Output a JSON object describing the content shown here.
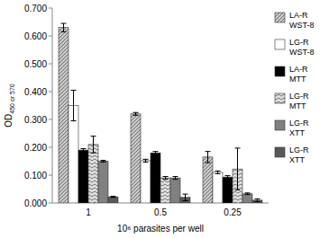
{
  "chart_data": {
    "type": "bar",
    "x_label": "10⁶ parasites per well",
    "y_label": "OD450 or 570",
    "categories": [
      "1",
      "0.5",
      "0.25"
    ],
    "series": [
      {
        "name": "LA-R WST-8",
        "color": "#c8c8c8",
        "values": [
          0.63,
          0.32,
          0.165
        ],
        "errors": [
          0.015,
          0.005,
          0.02
        ]
      },
      {
        "name": "LG-R WST-8",
        "color": "#ffffff",
        "values": [
          0.35,
          0.152,
          0.11
        ],
        "errors": [
          0.055,
          0.005,
          0.005
        ]
      },
      {
        "name": "LA-R MTT",
        "color": "#000000",
        "values": [
          0.19,
          0.18,
          0.093
        ],
        "errors": [
          0.005,
          0.005,
          0.005
        ]
      },
      {
        "name": "LG-R MTT",
        "color": "#e0e0e0",
        "values": [
          0.21,
          0.09,
          0.122
        ],
        "errors": [
          0.03,
          0.005,
          0.075
        ]
      },
      {
        "name": "LG-R XTT",
        "color": "#808080",
        "values": [
          0.15,
          0.09,
          0.033
        ],
        "errors": [
          0.003,
          0.005,
          0.003
        ]
      },
      {
        "name": "LG-R XTT",
        "color": "#595959",
        "values": [
          0.022,
          0.02,
          0.01
        ],
        "errors": [
          0.002,
          0.012,
          0.005
        ]
      }
    ],
    "ylim": [
      0,
      0.7
    ],
    "yticks": [
      {
        "value": 0,
        "label": "0.000"
      },
      {
        "value": 0.1,
        "label": "0.100"
      },
      {
        "value": 0.2,
        "label": "0.200"
      },
      {
        "value": 0.3,
        "label": "0.300"
      },
      {
        "value": 0.4,
        "label": "0.400"
      },
      {
        "value": 0.5,
        "label": "0.500"
      },
      {
        "value": 0.6,
        "label": "0.600"
      },
      {
        "value": 0.7,
        "label": "0.700"
      }
    ],
    "grid": false,
    "legend": "right"
  }
}
